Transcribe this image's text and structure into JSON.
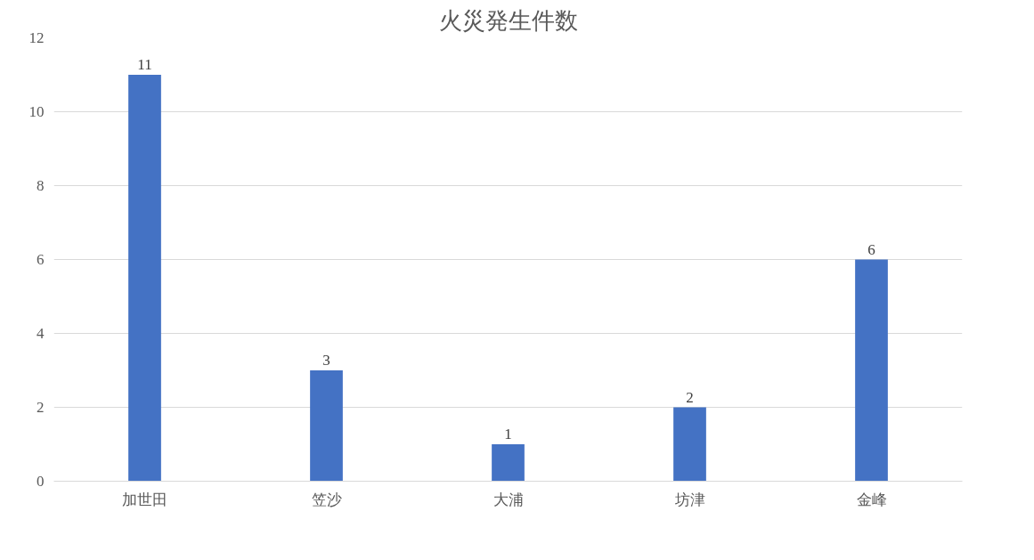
{
  "chart_data": {
    "type": "bar",
    "title": "火災発生件数",
    "categories": [
      "加世田",
      "笠沙",
      "大浦",
      "坊津",
      "金峰"
    ],
    "values": [
      11,
      3,
      1,
      2,
      6
    ],
    "color": "#4472c4",
    "ylim": [
      0,
      12
    ],
    "yticks": [
      0,
      2,
      4,
      6,
      8,
      10,
      12
    ],
    "grid": "y",
    "data_labels": true
  }
}
